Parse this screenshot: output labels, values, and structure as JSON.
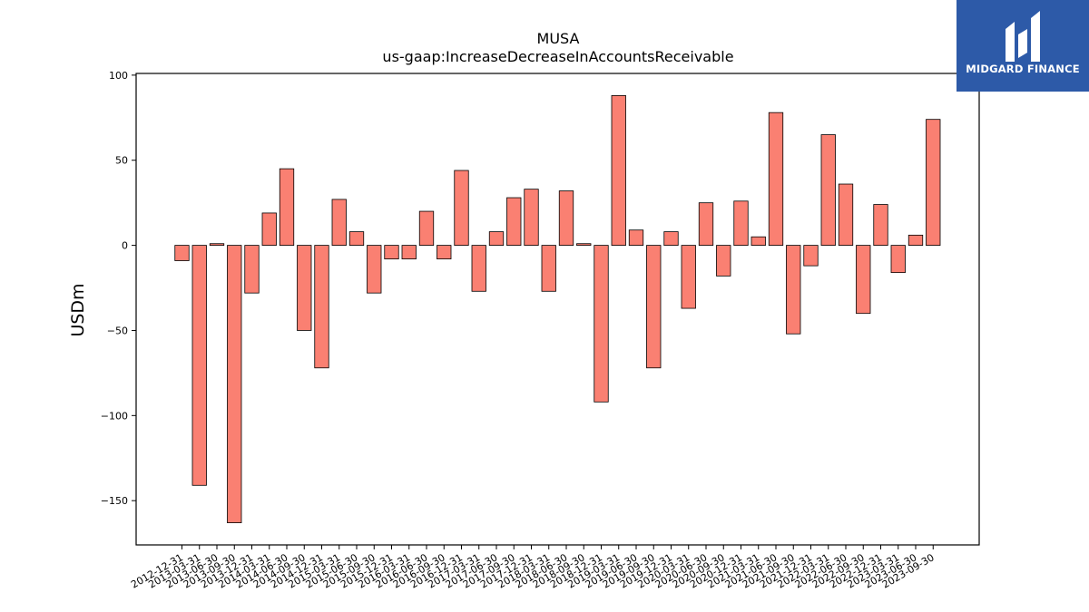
{
  "chart_data": {
    "type": "bar",
    "title": "MUSA",
    "subtitle": "us-gaap:IncreaseDecreaseInAccountsReceivable",
    "xlabel": "",
    "ylabel": "USDm",
    "ylim": [
      -176,
      101
    ],
    "yticks": [
      100,
      50,
      0,
      -50,
      -100,
      -150
    ],
    "ytick_labels": [
      "100",
      "50",
      "0",
      "−50",
      "−100",
      "−150"
    ],
    "grid": false,
    "bar_color": "#fa8072",
    "edge_color": "#000000",
    "categories": [
      "2012-12-31",
      "2013-03-31",
      "2013-06-30",
      "2013-09-30",
      "2013-12-31",
      "2014-03-31",
      "2014-06-30",
      "2014-09-30",
      "2014-12-31",
      "2015-03-31",
      "2015-06-30",
      "2015-09-30",
      "2015-12-31",
      "2016-03-31",
      "2016-06-30",
      "2016-09-30",
      "2016-12-31",
      "2017-03-31",
      "2017-06-30",
      "2017-09-30",
      "2017-12-31",
      "2018-03-31",
      "2018-06-30",
      "2018-09-30",
      "2018-12-31",
      "2019-03-31",
      "2019-06-30",
      "2019-09-30",
      "2019-12-31",
      "2020-03-31",
      "2020-06-30",
      "2020-09-30",
      "2020-12-31",
      "2021-03-31",
      "2021-06-30",
      "2021-09-30",
      "2021-12-31",
      "2022-03-31",
      "2022-06-30",
      "2022-09-30",
      "2022-12-31",
      "2023-03-31",
      "2023-06-30",
      "2023-09-30"
    ],
    "values": [
      -9,
      -141,
      1,
      -163,
      -28,
      19,
      45,
      -50,
      -72,
      27,
      8,
      -28,
      -8,
      -8,
      20,
      -8,
      44,
      -27,
      8,
      28,
      33,
      -27,
      32,
      1,
      -92,
      88,
      9,
      -72,
      8,
      -37,
      25,
      -18,
      26,
      5,
      78,
      -52,
      -12,
      65,
      36,
      -40,
      24,
      -16,
      6,
      74
    ]
  },
  "logo": {
    "text": "MIDGARD FINANCE",
    "icon": "midgard-logo-icon",
    "background": "#2d5aa8"
  }
}
